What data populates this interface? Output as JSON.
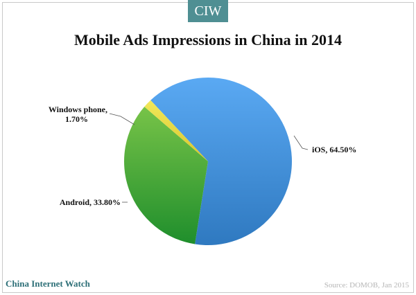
{
  "brand": {
    "badge": "CIW",
    "footer": "China Internet Watch"
  },
  "source": "Source: DOMOB, Jan 2015",
  "chart_data": {
    "type": "pie",
    "title": "Mobile Ads Impressions in China in 2014",
    "legend": "none",
    "series": [
      {
        "name": "iOS",
        "value": 64.5,
        "label": "iOS,  64.50%",
        "color": "#4da3f0"
      },
      {
        "name": "Android",
        "value": 33.8,
        "label": "Android,  33.80%",
        "color": "#5cb84a"
      },
      {
        "name": "Windows phone",
        "value": 1.7,
        "label_line1": "Windows  phone,",
        "label_line2": "1.70%",
        "color": "#ece24b"
      }
    ]
  }
}
